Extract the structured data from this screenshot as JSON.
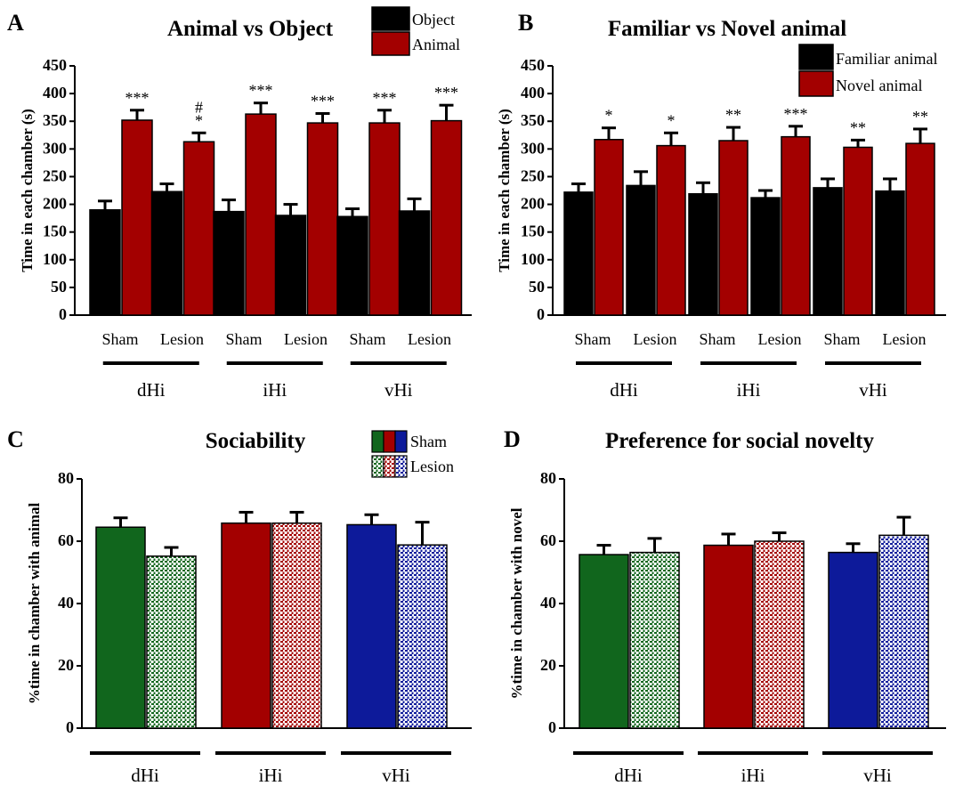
{
  "figure": {
    "panels": [
      {
        "letter": "A",
        "title": "Animal vs Object",
        "ylabel": "Time in each chamber (s)"
      },
      {
        "letter": "B",
        "title": "Familiar vs Novel animal",
        "ylabel": "Time in each chamber (s)"
      },
      {
        "letter": "C",
        "title": "Sociability",
        "ylabel": "%time in chamber with animal"
      },
      {
        "letter": "D",
        "title": "Preference for social novelty",
        "ylabel": "%time in chamber with novel"
      }
    ]
  },
  "chart_data": [
    {
      "panel": "A",
      "type": "bar",
      "title": "Animal vs Object",
      "ylabel": "Time in each chamber (s)",
      "ylim": [
        0,
        450
      ],
      "yticks": [
        0,
        50,
        100,
        150,
        200,
        250,
        300,
        350,
        400,
        450
      ],
      "groups": [
        "dHi",
        "iHi",
        "vHi"
      ],
      "subgroups": [
        "Sham",
        "Lesion",
        "Sham",
        "Lesion",
        "Sham",
        "Lesion"
      ],
      "series": [
        {
          "name": "Object",
          "color": "#000000",
          "values": [
            190,
            223,
            187,
            180,
            178,
            188
          ],
          "errors": [
            16,
            14,
            21,
            20,
            14,
            22
          ]
        },
        {
          "name": "Animal",
          "color": "#a30000",
          "values": [
            352,
            313,
            363,
            347,
            347,
            351
          ],
          "errors": [
            18,
            16,
            20,
            17,
            23,
            28
          ]
        }
      ],
      "annotations": [
        "***",
        "#\n*",
        "***",
        "***",
        "***",
        "***"
      ],
      "legend": "top-right"
    },
    {
      "panel": "B",
      "type": "bar",
      "title": "Familiar vs Novel animal",
      "ylabel": "Time in each chamber (s)",
      "ylim": [
        0,
        450
      ],
      "yticks": [
        0,
        50,
        100,
        150,
        200,
        250,
        300,
        350,
        400,
        450
      ],
      "groups": [
        "dHi",
        "iHi",
        "vHi"
      ],
      "subgroups": [
        "Sham",
        "Lesion",
        "Sham",
        "Lesion",
        "Sham",
        "Lesion"
      ],
      "series": [
        {
          "name": "Familiar animal",
          "color": "#000000",
          "values": [
            222,
            234,
            219,
            212,
            230,
            224
          ],
          "errors": [
            15,
            25,
            20,
            13,
            16,
            22
          ]
        },
        {
          "name": "Novel animal",
          "color": "#a30000",
          "values": [
            317,
            306,
            315,
            322,
            303,
            310
          ],
          "errors": [
            21,
            23,
            24,
            19,
            13,
            26
          ]
        }
      ],
      "annotations": [
        "*",
        "*",
        "**",
        "***",
        "**",
        "**"
      ],
      "legend": "top-right"
    },
    {
      "panel": "C",
      "type": "bar",
      "title": "Sociability",
      "ylabel": "%time in chamber with animal",
      "ylim": [
        0,
        80
      ],
      "yticks": [
        0,
        20,
        40,
        60,
        80
      ],
      "groups": [
        "dHi",
        "iHi",
        "vHi"
      ],
      "group_colors": [
        "#11661d",
        "#a30000",
        "#0d1a9a"
      ],
      "series": [
        {
          "name": "Sham",
          "values": [
            64.5,
            65.8,
            65.3
          ],
          "errors": [
            3.0,
            3.5,
            3.2
          ]
        },
        {
          "name": "Lesion",
          "values": [
            55.2,
            65.8,
            58.8
          ],
          "errors": [
            2.8,
            3.5,
            7.3
          ]
        }
      ],
      "legend": "top-right"
    },
    {
      "panel": "D",
      "type": "bar",
      "title": "Preference for social novelty",
      "ylabel": "%time in chamber with novel",
      "ylim": [
        0,
        80
      ],
      "yticks": [
        0,
        20,
        40,
        60,
        80
      ],
      "groups": [
        "dHi",
        "iHi",
        "vHi"
      ],
      "group_colors": [
        "#11661d",
        "#a30000",
        "#0d1a9a"
      ],
      "series": [
        {
          "name": "Sham",
          "values": [
            55.7,
            58.7,
            56.4
          ],
          "errors": [
            3.0,
            3.6,
            2.8
          ]
        },
        {
          "name": "Lesion",
          "values": [
            56.4,
            60.0,
            61.9
          ],
          "errors": [
            4.5,
            2.7,
            5.8
          ]
        }
      ]
    }
  ]
}
